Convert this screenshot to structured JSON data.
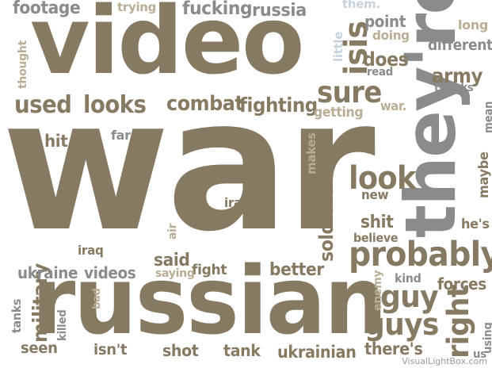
{
  "colors": {
    "brown": "#877a63",
    "gray": "#8a8c8c",
    "tan": "#b9ad94",
    "lightblue": "#c9d3dd",
    "background": "#ffffff"
  },
  "words": [
    {
      "text": "war",
      "color": "brown"
    },
    {
      "text": "video",
      "color": "brown"
    },
    {
      "text": "russian",
      "color": "brown"
    },
    {
      "text": "they're",
      "color": "gray"
    },
    {
      "text": "probably",
      "color": "brown"
    },
    {
      "text": "look",
      "color": "brown"
    },
    {
      "text": "sure",
      "color": "brown"
    },
    {
      "text": "isis",
      "color": "brown"
    },
    {
      "text": "guy",
      "color": "brown"
    },
    {
      "text": "guys",
      "color": "brown"
    },
    {
      "text": "right",
      "color": "brown"
    },
    {
      "text": "military",
      "color": "brown"
    },
    {
      "text": "used",
      "color": "brown"
    },
    {
      "text": "looks",
      "color": "brown"
    },
    {
      "text": "combat",
      "color": "brown"
    },
    {
      "text": "fighting",
      "color": "brown"
    },
    {
      "text": "soldiers",
      "color": "brown"
    },
    {
      "text": "army",
      "color": "brown"
    },
    {
      "text": "does",
      "color": "brown"
    },
    {
      "text": "footage",
      "color": "gray"
    },
    {
      "text": "fucking",
      "color": "gray"
    },
    {
      "text": "russia",
      "color": "gray"
    },
    {
      "text": "trying",
      "color": "tan"
    },
    {
      "text": "them.",
      "color": "lightblue"
    },
    {
      "text": "point",
      "color": "gray"
    },
    {
      "text": "long",
      "color": "tan"
    },
    {
      "text": "doing",
      "color": "tan"
    },
    {
      "text": "different",
      "color": "gray"
    },
    {
      "text": "little",
      "color": "lightblue"
    },
    {
      "text": "thought",
      "color": "tan"
    },
    {
      "text": "read",
      "color": "gray"
    },
    {
      "text": "thanks",
      "color": "gray"
    },
    {
      "text": "mean",
      "color": "gray"
    },
    {
      "text": "getting",
      "color": "tan"
    },
    {
      "text": "war.",
      "color": "tan"
    },
    {
      "text": "hit",
      "color": "brown"
    },
    {
      "text": "far",
      "color": "gray"
    },
    {
      "text": "makes",
      "color": "tan"
    },
    {
      "text": "maybe",
      "color": "brown"
    },
    {
      "text": "that.",
      "color": "brown"
    },
    {
      "text": "iraqi",
      "color": "brown"
    },
    {
      "text": "new",
      "color": "brown"
    },
    {
      "text": "air",
      "color": "tan"
    },
    {
      "text": "shit",
      "color": "brown"
    },
    {
      "text": "he's",
      "color": "brown"
    },
    {
      "text": "believe",
      "color": "brown"
    },
    {
      "text": "iraq",
      "color": "brown"
    },
    {
      "text": "said",
      "color": "brown"
    },
    {
      "text": "fight",
      "color": "brown"
    },
    {
      "text": "saying",
      "color": "tan"
    },
    {
      "text": "ukraine",
      "color": "gray"
    },
    {
      "text": "videos",
      "color": "gray"
    },
    {
      "text": "better",
      "color": "brown"
    },
    {
      "text": "kind",
      "color": "gray"
    },
    {
      "text": "enemy",
      "color": "tan"
    },
    {
      "text": "forces",
      "color": "brown"
    },
    {
      "text": "tanks",
      "color": "gray"
    },
    {
      "text": "killed",
      "color": "gray"
    },
    {
      "text": "bad",
      "color": "tan"
    },
    {
      "text": "using",
      "color": "gray"
    },
    {
      "text": "seen",
      "color": "brown"
    },
    {
      "text": "isn't",
      "color": "brown"
    },
    {
      "text": "shot",
      "color": "brown"
    },
    {
      "text": "tank",
      "color": "brown"
    },
    {
      "text": "ukrainian",
      "color": "brown"
    },
    {
      "text": "there's",
      "color": "brown"
    },
    {
      "text": "us",
      "color": "gray"
    }
  ],
  "credit": "VisualLightBox.com"
}
